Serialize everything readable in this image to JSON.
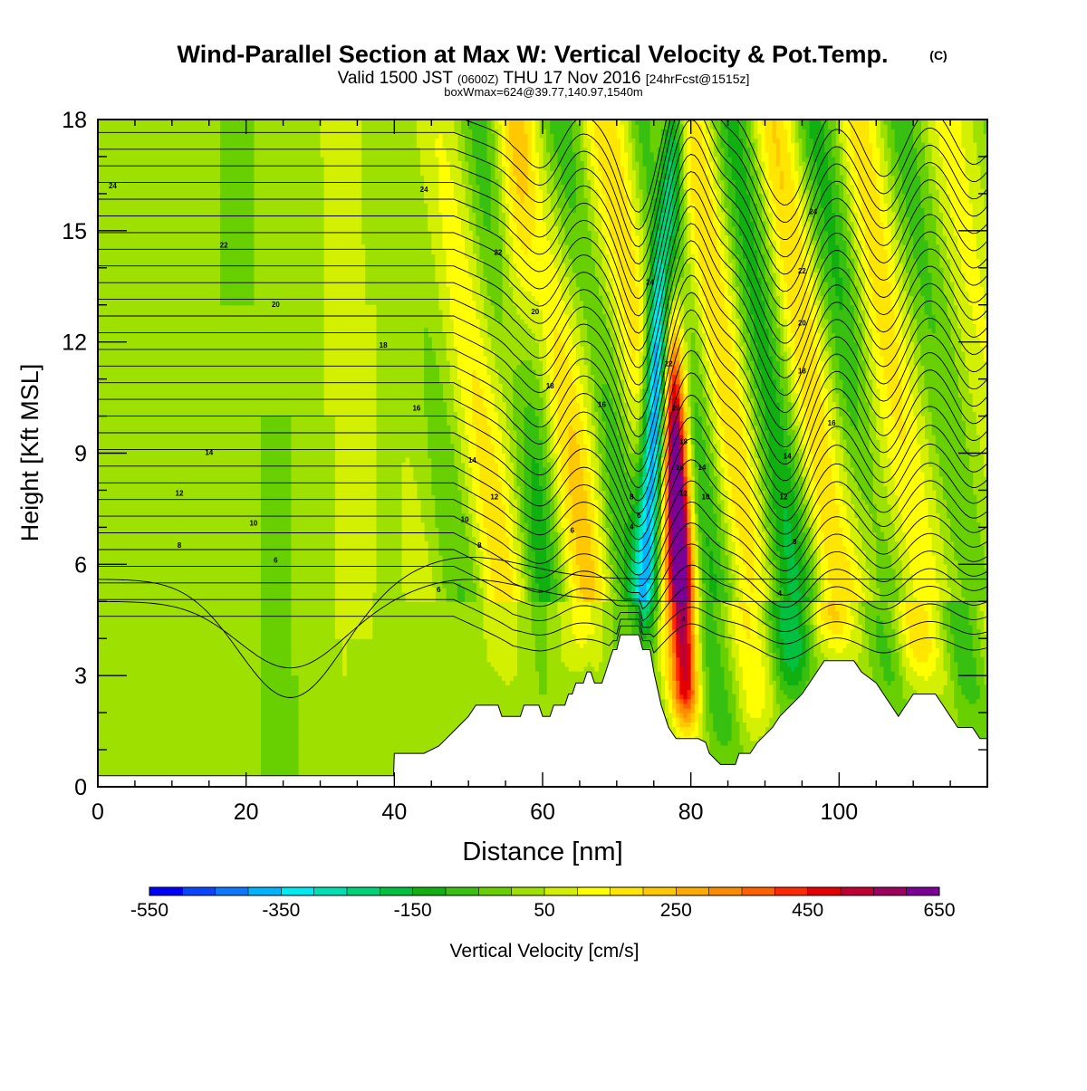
{
  "title": {
    "main": "Wind-Parallel Section at Max W: Vertical Velocity & Pot.Temp.",
    "copyright": "(C)",
    "valid_prefix": "Valid 1500 JST",
    "valid_utc": "(0600Z)",
    "valid_date": "THU 17 Nov 2016",
    "forecast": "[24hrFcst@1515z]",
    "boxinfo": "boxWmax=624@39.77,140.97,1540m"
  },
  "chart_data": {
    "type": "heatmap",
    "xlabel": "Distance [nm]",
    "ylabel": "Height [Kft MSL]",
    "xlim": [
      0,
      120
    ],
    "ylim": [
      0,
      18
    ],
    "xticks": [
      "0",
      "20",
      "40",
      "60",
      "80",
      "100"
    ],
    "yticks": [
      "0",
      "3",
      "6",
      "9",
      "12",
      "15",
      "18"
    ],
    "colorbar": {
      "label": "Vertical Velocity [cm/s]",
      "tick_labels": [
        "-550",
        "-350",
        "-150",
        "50",
        "250",
        "450",
        "650"
      ],
      "levels": [
        -550,
        -500,
        -450,
        -400,
        -350,
        -300,
        -250,
        -200,
        -150,
        -100,
        -50,
        0,
        50,
        100,
        150,
        200,
        250,
        300,
        350,
        400,
        450,
        500,
        550,
        600,
        650
      ],
      "colors": [
        "#0000ff",
        "#0a46ff",
        "#0c78ff",
        "#00b4ff",
        "#00eaf2",
        "#00e0b4",
        "#00d278",
        "#00c040",
        "#10b010",
        "#38c010",
        "#68d000",
        "#9ee000",
        "#d2f000",
        "#ffff00",
        "#ffe600",
        "#ffc800",
        "#ffaa00",
        "#ff8c00",
        "#ff6000",
        "#ff2800",
        "#e60000",
        "#c00030",
        "#9e0060",
        "#7a0096"
      ]
    },
    "max_w": 624,
    "max_w_location": [
      39.77,
      140.97
    ],
    "max_w_height_m": 1540,
    "terrain_kft": [
      [
        0,
        0.3
      ],
      [
        4,
        0.3
      ],
      [
        8,
        0.3
      ],
      [
        20,
        0.3
      ],
      [
        30,
        0.3
      ],
      [
        39.9,
        0.3
      ],
      [
        40,
        0.9
      ],
      [
        44,
        0.9
      ],
      [
        46,
        1.1
      ],
      [
        47,
        1.3
      ],
      [
        48,
        1.5
      ],
      [
        49,
        1.7
      ],
      [
        50,
        1.9
      ],
      [
        51,
        2.2
      ],
      [
        54,
        2.2
      ],
      [
        54.5,
        1.9
      ],
      [
        57,
        1.9
      ],
      [
        57.5,
        2.2
      ],
      [
        59.5,
        2.2
      ],
      [
        60,
        1.9
      ],
      [
        61,
        1.9
      ],
      [
        61.5,
        2.2
      ],
      [
        63,
        2.2
      ],
      [
        63.5,
        2.5
      ],
      [
        64,
        2.5
      ],
      [
        64.5,
        2.8
      ],
      [
        65.5,
        2.8
      ],
      [
        66,
        3.1
      ],
      [
        66.5,
        3.1
      ],
      [
        67,
        2.8
      ],
      [
        68,
        2.8
      ],
      [
        68.5,
        3.1
      ],
      [
        69,
        3.4
      ],
      [
        69.5,
        3.7
      ],
      [
        70,
        3.7
      ],
      [
        70.5,
        4.1
      ],
      [
        73,
        4.1
      ],
      [
        73.5,
        3.7
      ],
      [
        74.5,
        3.7
      ],
      [
        75,
        3.1
      ],
      [
        76,
        2.2
      ],
      [
        77,
        1.6
      ],
      [
        78,
        1.3
      ],
      [
        80,
        1.3
      ],
      [
        81,
        1.3
      ],
      [
        82,
        1.2
      ],
      [
        82.5,
        0.9
      ],
      [
        84,
        0.6
      ],
      [
        86,
        0.6
      ],
      [
        86.5,
        0.9
      ],
      [
        88,
        0.9
      ],
      [
        89,
        1.2
      ],
      [
        91,
        1.6
      ],
      [
        92,
        1.9
      ],
      [
        93.5,
        2.2
      ],
      [
        95,
        2.5
      ],
      [
        96,
        2.8
      ],
      [
        97,
        3.1
      ],
      [
        98,
        3.4
      ],
      [
        102,
        3.4
      ],
      [
        103,
        3.1
      ],
      [
        105,
        2.8
      ],
      [
        106,
        2.5
      ],
      [
        107,
        2.2
      ],
      [
        108,
        1.9
      ],
      [
        109,
        2.2
      ],
      [
        110,
        2.5
      ],
      [
        113,
        2.5
      ],
      [
        114,
        2.2
      ],
      [
        115,
        1.9
      ],
      [
        116,
        1.6
      ],
      [
        118,
        1.6
      ],
      [
        119,
        1.3
      ],
      [
        120,
        1.3
      ]
    ],
    "theta_label_values": [
      "4",
      "6",
      "8",
      "10",
      "12",
      "14",
      "16",
      "18",
      "20",
      "22",
      "24"
    ]
  }
}
